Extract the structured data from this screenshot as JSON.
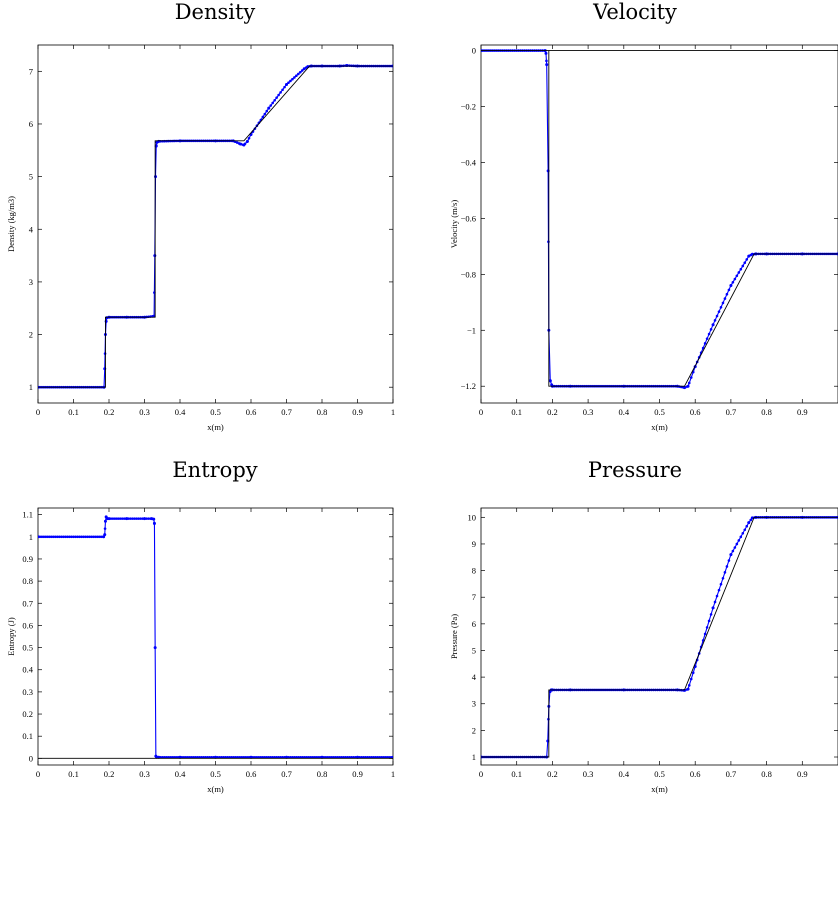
{
  "chart_data": [
    {
      "type": "line",
      "title": "Density",
      "xlabel": "x(m)",
      "ylabel": "Density (kg/m3)",
      "xlim": [
        0,
        1
      ],
      "ylim": [
        0.7,
        7.5
      ],
      "xticks": [
        0,
        0.1,
        0.2,
        0.3,
        0.4,
        0.5,
        0.6,
        0.7,
        0.8,
        0.9,
        1
      ],
      "xtick_labels": [
        "0",
        "0.1",
        "0.2",
        "0.3",
        "0.4",
        "0.5",
        "0.6",
        "0.7",
        "0.8",
        "0.9",
        "1"
      ],
      "yticks": [
        1,
        2,
        3,
        4,
        5,
        6,
        7
      ],
      "ytick_labels": [
        "1",
        "2",
        "3",
        "4",
        "5",
        "6",
        "7"
      ],
      "grid": false,
      "series": [
        {
          "style": "solid-line",
          "color": "#0000ff",
          "x": [
            0,
            0.186,
            0.188,
            0.19,
            0.192,
            0.194,
            0.2,
            0.25,
            0.3,
            0.327,
            0.329,
            0.331,
            0.333,
            0.335,
            0.34,
            0.4,
            0.5,
            0.55,
            0.57,
            0.58,
            0.59,
            0.6,
            0.65,
            0.7,
            0.75,
            0.76,
            0.77,
            0.8,
            0.85,
            0.87,
            0.9,
            1
          ],
          "y": [
            1.0,
            1.0,
            1.35,
            2.0,
            2.25,
            2.32,
            2.33,
            2.33,
            2.33,
            2.35,
            3.5,
            5.0,
            5.58,
            5.65,
            5.67,
            5.68,
            5.68,
            5.68,
            5.62,
            5.6,
            5.67,
            5.8,
            6.3,
            6.75,
            7.05,
            7.09,
            7.1,
            7.1,
            7.1,
            7.11,
            7.1,
            7.1
          ]
        },
        {
          "style": "black-line",
          "color": "#000000",
          "x": [
            0,
            0.19,
            0.19,
            0.33,
            0.33,
            0.58,
            0.765,
            1
          ],
          "y": [
            1.0,
            1.0,
            2.33,
            2.33,
            5.68,
            5.68,
            7.1,
            7.1
          ]
        }
      ]
    },
    {
      "type": "line",
      "title": "Velocity",
      "xlabel": "x(m)",
      "ylabel": "Velocity (m/s)",
      "xlim": [
        0,
        1
      ],
      "ylim": [
        -1.26,
        0.02
      ],
      "xticks": [
        0,
        0.1,
        0.2,
        0.3,
        0.4,
        0.5,
        0.6,
        0.7,
        0.8,
        0.9
      ],
      "xtick_labels": [
        "0",
        "0.1",
        "0.2",
        "0.3",
        "0.4",
        "0.5",
        "0.6",
        "0.7",
        "0.8",
        "0.9"
      ],
      "yticks": [
        0,
        -0.2,
        -0.4,
        -0.6,
        -0.8,
        -1,
        -1.2
      ],
      "ytick_labels": [
        "0",
        "−0.2",
        "−0.4",
        "−0.6",
        "−0.8",
        "−1",
        "−1.2"
      ],
      "grid": false,
      "series": [
        {
          "style": "solid-line",
          "color": "#0000ff",
          "x": [
            0,
            0.18,
            0.182,
            0.184,
            0.188,
            0.19,
            0.194,
            0.198,
            0.2,
            0.25,
            0.4,
            0.55,
            0.57,
            0.58,
            0.6,
            0.65,
            0.7,
            0.75,
            0.76,
            0.77,
            0.8,
            0.9,
            1
          ],
          "y": [
            0,
            0,
            -0.01,
            -0.05,
            -0.43,
            -1.0,
            -1.18,
            -1.195,
            -1.2,
            -1.2,
            -1.2,
            -1.2,
            -1.205,
            -1.2,
            -1.13,
            -0.98,
            -0.84,
            -0.735,
            -0.728,
            -0.727,
            -0.727,
            -0.727,
            -0.727
          ]
        },
        {
          "style": "black-line",
          "color": "#000000",
          "x": [
            0,
            0.19,
            0.19,
            0.57,
            0.765,
            1
          ],
          "y": [
            0,
            0,
            -1.2,
            -1.2,
            -0.727,
            -0.727
          ]
        },
        {
          "style": "black-line",
          "color": "#000000",
          "x": [
            0.19,
            1
          ],
          "y": [
            0,
            0
          ]
        }
      ]
    },
    {
      "type": "line",
      "title": "Entropy",
      "xlabel": "x(m)",
      "ylabel": "Entropy (J)",
      "xlim": [
        0,
        1
      ],
      "ylim": [
        -0.03,
        1.13
      ],
      "xticks": [
        0,
        0.1,
        0.2,
        0.3,
        0.4,
        0.5,
        0.6,
        0.7,
        0.8,
        0.9,
        1
      ],
      "xtick_labels": [
        "0",
        "0.1",
        "0.2",
        "0.3",
        "0.4",
        "0.5",
        "0.6",
        "0.7",
        "0.8",
        "0.9",
        "1"
      ],
      "yticks": [
        0,
        0.1,
        0.2,
        0.3,
        0.4,
        0.5,
        0.6,
        0.7,
        0.8,
        0.9,
        1,
        1.1
      ],
      "ytick_labels": [
        "0",
        "0.1",
        "0.2",
        "0.3",
        "0.4",
        "0.5",
        "0.6",
        "0.7",
        "0.8",
        "0.9",
        "1",
        "1.1"
      ],
      "grid": false,
      "series": [
        {
          "style": "solid-line",
          "color": "#0000ff",
          "x": [
            0,
            0.185,
            0.188,
            0.19,
            0.192,
            0.195,
            0.2,
            0.25,
            0.3,
            0.32,
            0.326,
            0.328,
            0.33,
            0.332,
            0.334,
            0.34,
            0.4,
            0.5,
            0.6,
            0.7,
            0.8,
            0.9,
            1
          ],
          "y": [
            1.0,
            1.0,
            1.01,
            1.07,
            1.09,
            1.082,
            1.082,
            1.082,
            1.082,
            1.082,
            1.08,
            1.06,
            0.5,
            0.01,
            0.005,
            0.005,
            0.005,
            0.005,
            0.005,
            0.005,
            0.005,
            0.005,
            0.005
          ]
        },
        {
          "style": "black-line",
          "color": "#000000",
          "x": [
            0,
            0.33,
            0.33,
            1
          ],
          "y": [
            0,
            0,
            0,
            0
          ]
        }
      ]
    },
    {
      "type": "line",
      "title": "Pressure",
      "xlabel": "x(m)",
      "ylabel": "Pressure (Pa)",
      "xlim": [
        0,
        1
      ],
      "ylim": [
        0.7,
        10.35
      ],
      "xticks": [
        0,
        0.1,
        0.2,
        0.3,
        0.4,
        0.5,
        0.6,
        0.7,
        0.8,
        0.9
      ],
      "xtick_labels": [
        "0",
        "0.1",
        "0.2",
        "0.3",
        "0.4",
        "0.5",
        "0.6",
        "0.7",
        "0.8",
        "0.9"
      ],
      "yticks": [
        1,
        2,
        3,
        4,
        5,
        6,
        7,
        8,
        9,
        10
      ],
      "ytick_labels": [
        "1",
        "2",
        "3",
        "4",
        "5",
        "6",
        "7",
        "8",
        "9",
        "10"
      ],
      "grid": false,
      "series": [
        {
          "style": "solid-line",
          "color": "#0000ff",
          "x": [
            0,
            0.184,
            0.187,
            0.19,
            0.193,
            0.197,
            0.2,
            0.25,
            0.4,
            0.55,
            0.57,
            0.58,
            0.6,
            0.65,
            0.7,
            0.75,
            0.76,
            0.77,
            0.8,
            0.9,
            1
          ],
          "y": [
            1.0,
            1.0,
            1.6,
            2.9,
            3.45,
            3.52,
            3.52,
            3.52,
            3.52,
            3.52,
            3.5,
            3.55,
            4.4,
            6.6,
            8.6,
            9.8,
            9.98,
            10.0,
            10.0,
            10.0,
            10.0
          ]
        },
        {
          "style": "black-line",
          "color": "#000000",
          "x": [
            0,
            0.19,
            0.19,
            0.57,
            0.765,
            1
          ],
          "y": [
            1.0,
            1.0,
            3.52,
            3.52,
            10.0,
            10.0
          ]
        }
      ]
    }
  ]
}
